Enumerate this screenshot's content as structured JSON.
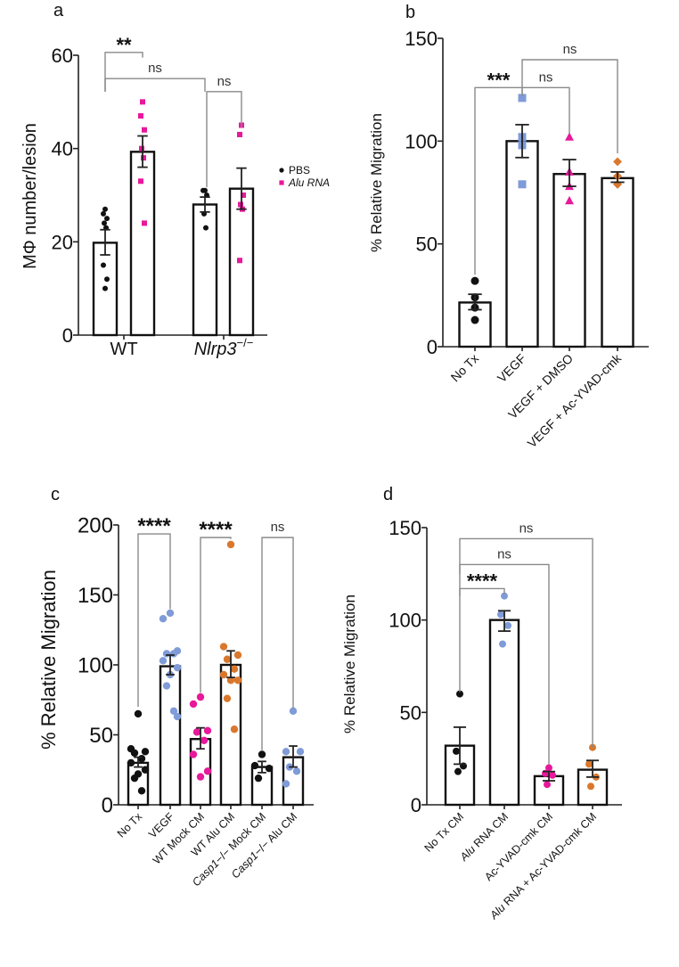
{
  "colors": {
    "black": "#111111",
    "pink": "#e8189b",
    "blue": "#7f9bd8",
    "orange": "#d9782d",
    "bracket": "#8a8a8a"
  },
  "chart_data": [
    {
      "panel": "a",
      "type": "bar",
      "ylabel": "MΦ number/lesion",
      "ylim": [
        0,
        60
      ],
      "yticks": [
        0,
        20,
        40,
        60
      ],
      "categories": [
        {
          "text": "WT",
          "italic": false
        },
        {
          "text": "Nlrp3",
          "sup": "−/−",
          "italic": true
        }
      ],
      "legend": [
        {
          "label": "PBS",
          "color": "#111111",
          "marker": "circle",
          "italic": false
        },
        {
          "label": "Alu RNA",
          "color": "#e8189b",
          "marker": "square",
          "italic": true
        }
      ],
      "bars": [
        {
          "group": "WT",
          "series": "PBS",
          "mean": 19.8,
          "sem": [
            17.2,
            22.6
          ],
          "points": [
            27,
            26,
            25,
            24,
            23,
            15,
            12,
            10
          ],
          "color": "#111111",
          "marker": "circle"
        },
        {
          "group": "WT",
          "series": "Alu RNA",
          "mean": 39.3,
          "sem": [
            36.0,
            42.7
          ],
          "points": [
            50,
            47,
            44,
            40,
            38,
            33,
            24
          ],
          "color": "#e8189b",
          "marker": "square"
        },
        {
          "group": "Nlrp3−/−",
          "series": "PBS",
          "mean": 28.0,
          "sem": [
            26.4,
            29.6
          ],
          "points": [
            31,
            31,
            30,
            26,
            23
          ],
          "color": "#111111",
          "marker": "circle"
        },
        {
          "group": "Nlrp3−/−",
          "series": "Alu RNA",
          "mean": 31.4,
          "sem": [
            27.0,
            35.8
          ],
          "points": [
            45,
            43,
            30,
            28,
            27,
            16
          ],
          "color": "#e8189b",
          "marker": "square"
        }
      ],
      "brackets": [
        {
          "from": 0,
          "to": 1,
          "y": 60.6,
          "y_from": 52.2,
          "y_to": 59.5,
          "label": "**"
        },
        {
          "from": 0,
          "to": 2,
          "y": 55.0,
          "y_from": 52.2,
          "y_to": 52.2,
          "label": "ns"
        },
        {
          "from": 2,
          "to": 3,
          "y": 52.2,
          "y_from": 31.7,
          "y_to": 44.5,
          "label": "ns"
        }
      ]
    },
    {
      "panel": "b",
      "type": "bar",
      "ylabel": "% Relative Migration",
      "ylim": [
        0,
        150
      ],
      "yticks": [
        0,
        50,
        100,
        150
      ],
      "bars": [
        {
          "label": "No Tx",
          "mean": 21.5,
          "sem": [
            18,
            25.5
          ],
          "points": [
            32,
            24,
            19,
            13
          ],
          "color": "#111111",
          "marker": "circle"
        },
        {
          "label": "VEGF",
          "mean": 100,
          "sem": [
            92,
            108
          ],
          "points": [
            121,
            102,
            98,
            79
          ],
          "color": "#7f9bd8",
          "marker": "square"
        },
        {
          "label": "VEGF + DMSO",
          "mean": 84,
          "sem": [
            78,
            91
          ],
          "points": [
            102,
            85,
            78,
            71
          ],
          "color": "#e8189b",
          "marker": "triangle"
        },
        {
          "label": "VEGF + Ac-YVAD-cmk",
          "mean": 82,
          "sem": [
            80,
            85
          ],
          "points": [
            90,
            83,
            79,
            79
          ],
          "color": "#d9782d",
          "marker": "diamond"
        }
      ],
      "brackets": [
        {
          "from": 0,
          "to": 1,
          "y": 126,
          "y_from": 35,
          "y_to": 122,
          "label": "***"
        },
        {
          "from": 1,
          "to": 2,
          "y": 126,
          "y_from": 122,
          "y_to": 103.6,
          "label": "ns"
        },
        {
          "from": 1,
          "to": 3,
          "y": 139.6,
          "y_from": 126,
          "y_to": 94,
          "label": "ns"
        }
      ]
    },
    {
      "panel": "c",
      "type": "bar",
      "ylabel": "% Relative Migration",
      "ylim": [
        0,
        200
      ],
      "yticks": [
        0,
        50,
        100,
        150,
        200
      ],
      "bars": [
        {
          "label": "No Tx",
          "mean": 30,
          "sem": [
            27,
            34
          ],
          "points": [
            65,
            40,
            38,
            37,
            33,
            30,
            25,
            22,
            19,
            10
          ],
          "color": "#111111",
          "marker": "circle"
        },
        {
          "label": "VEGF",
          "mean": 99,
          "sem": [
            93,
            107
          ],
          "points": [
            137,
            133,
            110,
            108,
            108,
            103,
            98,
            93,
            85,
            67,
            63
          ],
          "color": "#7f9bd8",
          "marker": "circle"
        },
        {
          "label": "WT Mock CM",
          "mean": 47,
          "sem": [
            40,
            55
          ],
          "points": [
            77,
            72,
            53,
            52,
            46,
            36,
            24,
            20
          ],
          "color": "#e8189b",
          "marker": "circle"
        },
        {
          "label": "WT Alu CM",
          "mean": 100,
          "sem": [
            91,
            110
          ],
          "points": [
            186,
            113,
            107,
            104,
            97,
            93,
            89,
            89,
            76,
            54
          ],
          "color": "#d9782d",
          "marker": "circle"
        },
        {
          "label": "Casp1−/− Mock CM",
          "italic": "Casp1",
          "mean": 27,
          "sem": [
            23,
            31
          ],
          "points": [
            36,
            28,
            26,
            19
          ],
          "color": "#111111",
          "marker": "circle"
        },
        {
          "label": "Casp1−/− Alu CM",
          "italic": "Casp1",
          "mean": 34,
          "sem": [
            27,
            42
          ],
          "points": [
            67,
            38,
            38,
            27,
            24,
            15
          ],
          "color": "#7f9bd8",
          "marker": "circle"
        }
      ],
      "brackets": [
        {
          "from": 0,
          "to": 1,
          "y": 193.6,
          "y_from": 70,
          "y_to": 140,
          "label": "****"
        },
        {
          "from": 2,
          "to": 3,
          "y": 191,
          "y_from": 80,
          "y_to": 190,
          "label": "****"
        },
        {
          "from": 4,
          "to": 5,
          "y": 191,
          "y_from": 39,
          "y_to": 69,
          "label": "ns"
        }
      ]
    },
    {
      "panel": "d",
      "type": "bar",
      "ylabel": "% Relative Migration",
      "ylim": [
        0,
        150
      ],
      "yticks": [
        0,
        50,
        100,
        150
      ],
      "bars": [
        {
          "label": "No Tx CM",
          "mean": 32,
          "sem": [
            22,
            42
          ],
          "points": [
            60,
            29,
            21,
            18
          ],
          "color": "#111111",
          "marker": "circle"
        },
        {
          "label": "Alu RNA CM",
          "italic": "Alu",
          "mean": 100,
          "sem": [
            94,
            105
          ],
          "points": [
            113,
            103,
            97,
            87
          ],
          "color": "#7f9bd8",
          "marker": "circle"
        },
        {
          "label": "Ac-YVAD-cmk CM",
          "mean": 15.5,
          "sem": [
            13,
            18
          ],
          "points": [
            20,
            17,
            16,
            11
          ],
          "color": "#e8189b",
          "marker": "circle"
        },
        {
          "label": "Alu RNA + Ac-YVAD-cmk CM",
          "italic": "Alu",
          "mean": 19,
          "sem": [
            15,
            24
          ],
          "points": [
            31,
            22,
            15,
            10
          ],
          "color": "#d9782d",
          "marker": "circle"
        }
      ],
      "brackets": [
        {
          "from": 0,
          "to": 1,
          "y": 117,
          "y_from": 113,
          "y_to": 114,
          "label": "****"
        },
        {
          "from": 0,
          "to": 2,
          "y": 130,
          "y_from": 125,
          "y_to": 22,
          "label": "ns"
        },
        {
          "from": 0,
          "to": 3,
          "y": 144,
          "y_from": 61,
          "y_to": 31,
          "label": "ns"
        }
      ]
    }
  ]
}
